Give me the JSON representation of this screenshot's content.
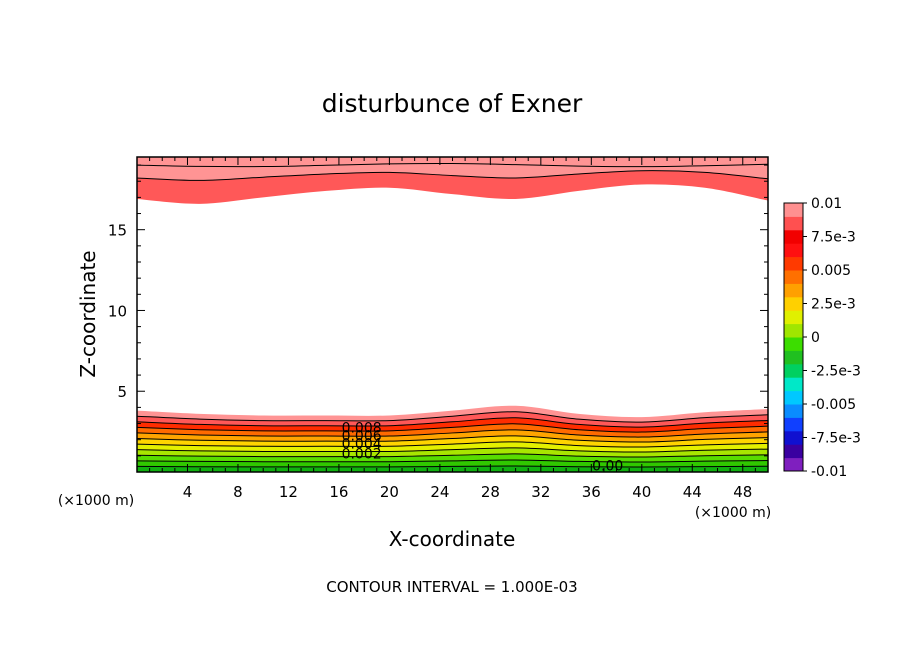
{
  "chart_data": {
    "type": "contour",
    "title": "disturbunce of Exner",
    "xlabel": "X-coordinate",
    "ylabel": "Z-coordinate",
    "x_unit": "(×1000 m)",
    "x_unit_right": "(×1000 m)",
    "footer": "CONTOUR INTERVAL = 1.000E-03",
    "xlim": [
      0,
      50
    ],
    "ylim": [
      0,
      19.5
    ],
    "x_ticks": [
      4,
      8,
      12,
      16,
      20,
      24,
      28,
      32,
      36,
      40,
      44,
      48
    ],
    "x_tick_labels": [
      "4",
      "8",
      "12",
      "16",
      "20",
      "24",
      "28",
      "32",
      "36",
      "40",
      "44",
      "48"
    ],
    "y_ticks": [
      5,
      10,
      15
    ],
    "y_tick_labels": [
      "5",
      "10",
      "15"
    ],
    "contour_labels": [
      "0.008",
      "0.006",
      "0.004",
      "0.002",
      "0.00"
    ],
    "colorbar": {
      "labels": [
        "0.01",
        "7.5e-3",
        "0.005",
        "2.5e-3",
        "0",
        "-2.5e-3",
        "-0.005",
        "-7.5e-3",
        "-0.01"
      ],
      "colors": [
        "#7f1fbf",
        "#3a00a0",
        "#1010d0",
        "#1040ff",
        "#0a8cff",
        "#00c8ff",
        "#00e8c8",
        "#00d060",
        "#20c020",
        "#3cdd00",
        "#a0e600",
        "#e0f000",
        "#ffd000",
        "#ffa000",
        "#ff7000",
        "#ff3a00",
        "#ff1010",
        "#f20000",
        "#ff5050",
        "#ff9090"
      ]
    },
    "bottom_layer": {
      "x": [
        0,
        5,
        10,
        15,
        20,
        25,
        30,
        35,
        40,
        45,
        50
      ],
      "top_height": [
        3.8,
        3.6,
        3.5,
        3.5,
        3.5,
        3.8,
        4.1,
        3.6,
        3.4,
        3.7,
        3.9
      ],
      "levels": [
        0.01,
        0.009,
        0.008,
        0.007,
        0.006,
        0.005,
        0.004,
        0.003,
        0.002,
        0.001,
        0.0
      ]
    },
    "top_layer": {
      "x": [
        0,
        5,
        10,
        15,
        20,
        25,
        30,
        35,
        40,
        45,
        50
      ],
      "bottom_height": [
        16.9,
        16.6,
        17.0,
        17.4,
        17.6,
        17.2,
        16.9,
        17.4,
        17.8,
        17.6,
        16.8
      ],
      "levels": [
        0.009,
        0.01
      ]
    }
  }
}
